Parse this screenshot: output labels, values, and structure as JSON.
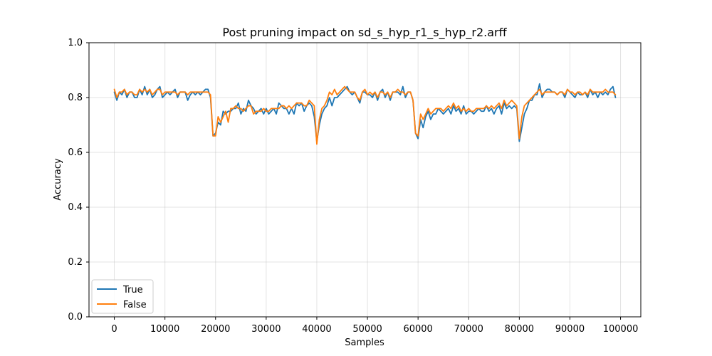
{
  "chart_data": {
    "type": "line",
    "title": "Post pruning impact on sd_s_hyp_r1_s_hyp_r2.arff",
    "xlabel": "Samples",
    "ylabel": "Accuracy",
    "xlim": [
      -5000,
      104000
    ],
    "ylim": [
      0.0,
      1.0
    ],
    "xticks": [
      0,
      10000,
      20000,
      30000,
      40000,
      50000,
      60000,
      70000,
      80000,
      90000,
      100000
    ],
    "yticks": [
      0.0,
      0.2,
      0.4,
      0.6,
      0.8,
      1.0
    ],
    "xtick_labels": [
      "0",
      "10000",
      "20000",
      "30000",
      "40000",
      "50000",
      "60000",
      "70000",
      "80000",
      "90000",
      "100000"
    ],
    "ytick_labels": [
      "0.0",
      "0.2",
      "0.4",
      "0.6",
      "0.8",
      "1.0"
    ],
    "grid": true,
    "legend_position": "lower-left",
    "x": [
      0,
      500,
      1000,
      1500,
      2000,
      2500,
      3000,
      3500,
      4000,
      4500,
      5000,
      5500,
      6000,
      6500,
      7000,
      7500,
      8000,
      8500,
      9000,
      9500,
      10000,
      10500,
      11000,
      11500,
      12000,
      12500,
      13000,
      13500,
      14000,
      14500,
      15000,
      15500,
      16000,
      16500,
      17000,
      17500,
      18000,
      18500,
      19000,
      19500,
      20000,
      20500,
      21000,
      21500,
      22000,
      22500,
      23000,
      23500,
      24000,
      24500,
      25000,
      25500,
      26000,
      26500,
      27000,
      27500,
      28000,
      28500,
      29000,
      29500,
      30000,
      30500,
      31000,
      31500,
      32000,
      32500,
      33000,
      33500,
      34000,
      34500,
      35000,
      35500,
      36000,
      36500,
      37000,
      37500,
      38000,
      38500,
      39000,
      39500,
      40000,
      40500,
      41000,
      41500,
      42000,
      42500,
      43000,
      43500,
      44000,
      44500,
      45000,
      45500,
      46000,
      46500,
      47000,
      47500,
      48000,
      48500,
      49000,
      49500,
      50000,
      50500,
      51000,
      51500,
      52000,
      52500,
      53000,
      53500,
      54000,
      54500,
      55000,
      55500,
      56000,
      56500,
      57000,
      57500,
      58000,
      58500,
      59000,
      59500,
      60000,
      60500,
      61000,
      61500,
      62000,
      62500,
      63000,
      63500,
      64000,
      64500,
      65000,
      65500,
      66000,
      66500,
      67000,
      67500,
      68000,
      68500,
      69000,
      69500,
      70000,
      70500,
      71000,
      71500,
      72000,
      72500,
      73000,
      73500,
      74000,
      74500,
      75000,
      75500,
      76000,
      76500,
      77000,
      77500,
      78000,
      78500,
      79000,
      79500,
      80000,
      80500,
      81000,
      81500,
      82000,
      82500,
      83000,
      83500,
      84000,
      84500,
      85000,
      85500,
      86000,
      86500,
      87000,
      87500,
      88000,
      88500,
      89000,
      89500,
      90000,
      90500,
      91000,
      91500,
      92000,
      92500,
      93000,
      93500,
      94000,
      94500,
      95000,
      95500,
      96000,
      96500,
      97000,
      97500,
      98000,
      98500,
      99000
    ],
    "series": [
      {
        "name": "True",
        "color": "#1f77b4",
        "values": [
          0.82,
          0.79,
          0.82,
          0.81,
          0.83,
          0.8,
          0.82,
          0.82,
          0.8,
          0.8,
          0.83,
          0.81,
          0.84,
          0.81,
          0.83,
          0.8,
          0.81,
          0.83,
          0.84,
          0.8,
          0.81,
          0.82,
          0.81,
          0.82,
          0.83,
          0.8,
          0.82,
          0.82,
          0.82,
          0.79,
          0.81,
          0.82,
          0.81,
          0.82,
          0.81,
          0.82,
          0.83,
          0.83,
          0.8,
          0.66,
          0.67,
          0.71,
          0.7,
          0.75,
          0.74,
          0.75,
          0.75,
          0.76,
          0.76,
          0.78,
          0.74,
          0.76,
          0.75,
          0.79,
          0.77,
          0.76,
          0.74,
          0.75,
          0.76,
          0.74,
          0.76,
          0.74,
          0.75,
          0.76,
          0.74,
          0.78,
          0.77,
          0.76,
          0.76,
          0.74,
          0.76,
          0.74,
          0.78,
          0.77,
          0.78,
          0.75,
          0.77,
          0.78,
          0.77,
          0.73,
          0.64,
          0.7,
          0.74,
          0.76,
          0.77,
          0.8,
          0.77,
          0.8,
          0.8,
          0.81,
          0.82,
          0.83,
          0.84,
          0.82,
          0.81,
          0.82,
          0.8,
          0.78,
          0.82,
          0.82,
          0.81,
          0.81,
          0.8,
          0.82,
          0.79,
          0.82,
          0.83,
          0.8,
          0.82,
          0.79,
          0.82,
          0.82,
          0.82,
          0.81,
          0.84,
          0.8,
          0.82,
          0.82,
          0.79,
          0.67,
          0.65,
          0.72,
          0.69,
          0.73,
          0.75,
          0.72,
          0.74,
          0.74,
          0.76,
          0.75,
          0.74,
          0.75,
          0.76,
          0.74,
          0.77,
          0.75,
          0.76,
          0.74,
          0.77,
          0.74,
          0.75,
          0.75,
          0.74,
          0.75,
          0.76,
          0.75,
          0.75,
          0.77,
          0.75,
          0.76,
          0.74,
          0.76,
          0.77,
          0.74,
          0.78,
          0.76,
          0.77,
          0.76,
          0.77,
          0.76,
          0.64,
          0.69,
          0.74,
          0.76,
          0.79,
          0.79,
          0.81,
          0.81,
          0.85,
          0.8,
          0.82,
          0.83,
          0.83,
          0.82,
          0.82,
          0.81,
          0.82,
          0.82,
          0.8,
          0.83,
          0.82,
          0.81,
          0.8,
          0.82,
          0.81,
          0.81,
          0.82,
          0.8,
          0.83,
          0.81,
          0.82,
          0.8,
          0.82,
          0.81,
          0.82,
          0.81,
          0.83,
          0.84,
          0.8
        ]
      },
      {
        "name": "False",
        "color": "#ff7f0e",
        "values": [
          0.83,
          0.8,
          0.82,
          0.82,
          0.83,
          0.81,
          0.82,
          0.82,
          0.81,
          0.81,
          0.83,
          0.82,
          0.83,
          0.82,
          0.83,
          0.81,
          0.82,
          0.83,
          0.83,
          0.81,
          0.82,
          0.82,
          0.82,
          0.82,
          0.82,
          0.81,
          0.82,
          0.82,
          0.82,
          0.81,
          0.82,
          0.82,
          0.82,
          0.82,
          0.82,
          0.82,
          0.82,
          0.82,
          0.81,
          0.66,
          0.66,
          0.73,
          0.71,
          0.73,
          0.75,
          0.71,
          0.76,
          0.76,
          0.77,
          0.76,
          0.76,
          0.75,
          0.76,
          0.77,
          0.77,
          0.74,
          0.75,
          0.75,
          0.75,
          0.76,
          0.75,
          0.75,
          0.76,
          0.76,
          0.76,
          0.76,
          0.77,
          0.77,
          0.76,
          0.77,
          0.76,
          0.77,
          0.78,
          0.78,
          0.78,
          0.77,
          0.77,
          0.79,
          0.78,
          0.77,
          0.63,
          0.72,
          0.76,
          0.77,
          0.79,
          0.82,
          0.81,
          0.83,
          0.81,
          0.82,
          0.83,
          0.84,
          0.83,
          0.82,
          0.82,
          0.82,
          0.8,
          0.79,
          0.82,
          0.83,
          0.81,
          0.82,
          0.81,
          0.82,
          0.8,
          0.82,
          0.82,
          0.81,
          0.82,
          0.8,
          0.82,
          0.82,
          0.83,
          0.82,
          0.82,
          0.81,
          0.82,
          0.82,
          0.79,
          0.67,
          0.66,
          0.74,
          0.72,
          0.74,
          0.76,
          0.74,
          0.75,
          0.76,
          0.76,
          0.76,
          0.75,
          0.76,
          0.77,
          0.76,
          0.78,
          0.76,
          0.77,
          0.75,
          0.76,
          0.75,
          0.76,
          0.75,
          0.75,
          0.76,
          0.76,
          0.76,
          0.76,
          0.77,
          0.76,
          0.77,
          0.76,
          0.77,
          0.78,
          0.76,
          0.79,
          0.77,
          0.78,
          0.79,
          0.78,
          0.77,
          0.65,
          0.73,
          0.77,
          0.78,
          0.79,
          0.8,
          0.81,
          0.82,
          0.83,
          0.81,
          0.82,
          0.82,
          0.82,
          0.82,
          0.82,
          0.81,
          0.82,
          0.82,
          0.81,
          0.83,
          0.82,
          0.82,
          0.81,
          0.82,
          0.82,
          0.81,
          0.82,
          0.81,
          0.83,
          0.82,
          0.82,
          0.82,
          0.82,
          0.82,
          0.83,
          0.82,
          0.82,
          0.82,
          0.81
        ]
      }
    ]
  }
}
